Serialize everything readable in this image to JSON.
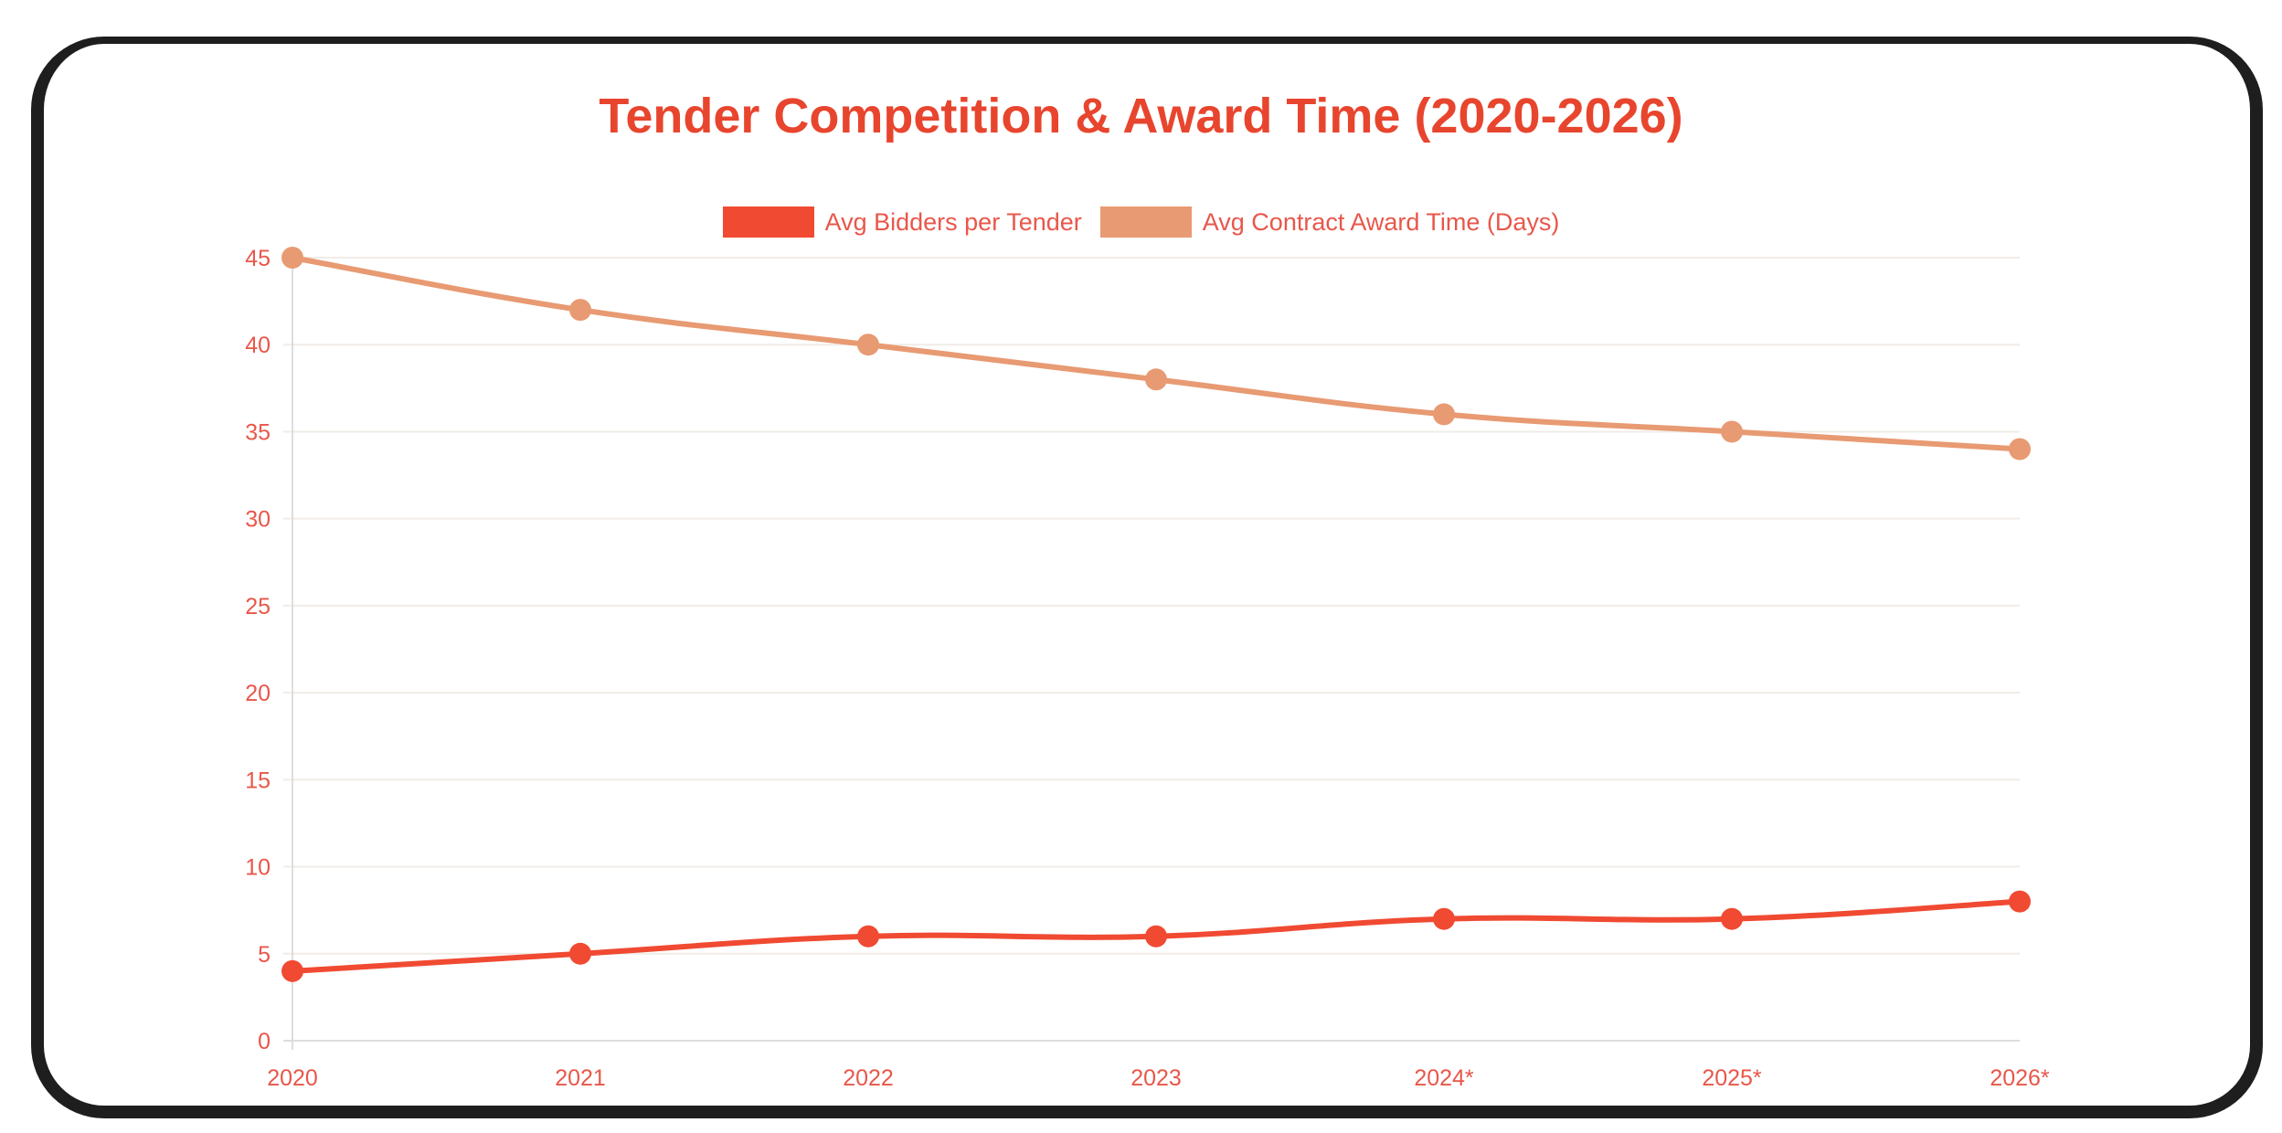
{
  "chart_data": {
    "type": "line",
    "title": "Tender Competition & Award Time (2020-2026)",
    "categories": [
      "2020",
      "2021",
      "2022",
      "2023",
      "2024*",
      "2025*",
      "2026*"
    ],
    "series": [
      {
        "name": "Avg Bidders per Tender",
        "color": "#f04a32",
        "values": [
          4,
          5,
          6,
          6,
          7,
          7,
          8
        ]
      },
      {
        "name": "Avg Contract Award Time (Days)",
        "color": "#e89a72",
        "values": [
          45,
          42,
          40,
          38,
          36,
          35,
          34
        ]
      }
    ],
    "xlabel": "",
    "ylabel": "",
    "ylim": [
      0,
      45
    ],
    "yticks": [
      0,
      5,
      10,
      15,
      20,
      25,
      30,
      35,
      40,
      45
    ],
    "grid": true,
    "legend_position": "top"
  },
  "colors": {
    "title": "#e8452e",
    "tick": "#e8574a",
    "grid": "#f0ece8",
    "axis": "#dddddd",
    "frame": "#1e1e1e"
  }
}
